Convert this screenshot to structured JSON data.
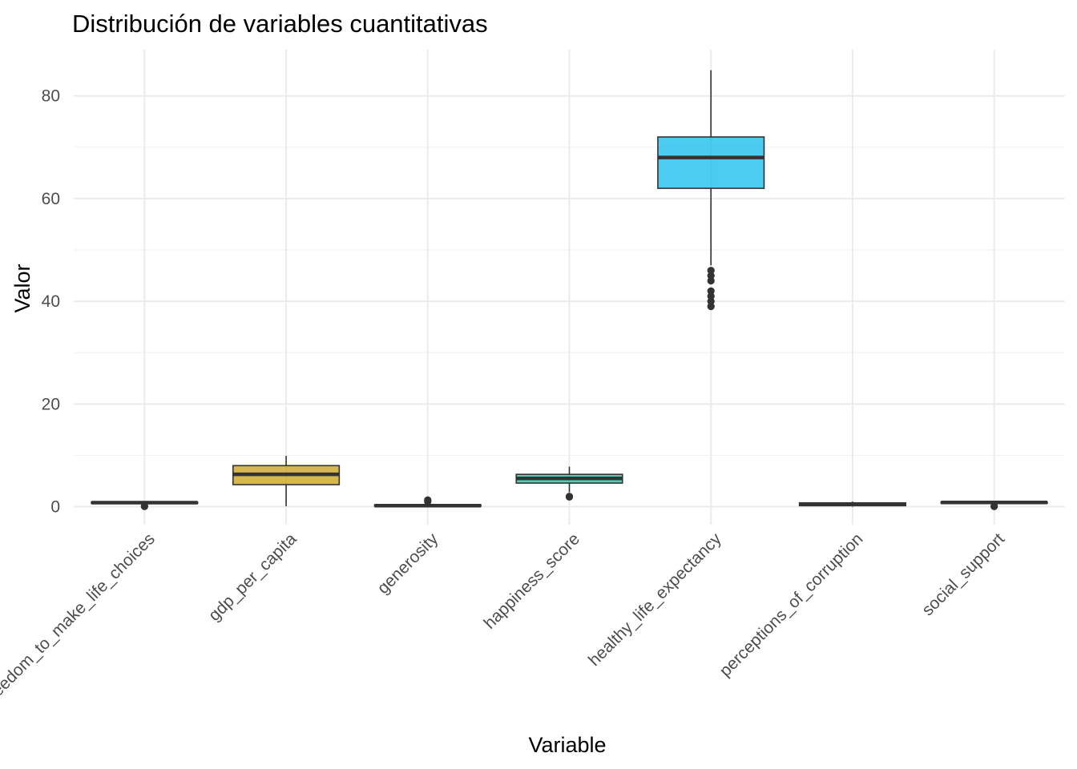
{
  "chart_data": {
    "type": "boxplot",
    "title": "Distribución de variables cuantitativas",
    "xlabel": "Variable",
    "ylabel": "Valor",
    "ylim": [
      -3.5,
      89
    ],
    "y_ticks": [
      0,
      20,
      40,
      60,
      80
    ],
    "grid": true,
    "legend": "none",
    "categories": [
      "freedom_to_make_life_choices",
      "gdp_per_capita",
      "generosity",
      "happiness_score",
      "healthy_life_expectancy",
      "perceptions_of_corruption",
      "social_support"
    ],
    "series": [
      {
        "category": "freedom_to_make_life_choices",
        "min": 0.3,
        "q1": 0.65,
        "median": 0.78,
        "q3": 0.88,
        "max": 1.0,
        "outliers": [
          0.05,
          0.1
        ],
        "color": "#F8766D"
      },
      {
        "category": "gdp_per_capita",
        "min": 0.1,
        "q1": 4.3,
        "median": 6.3,
        "q3": 8.0,
        "max": 9.9,
        "outliers": [],
        "color": "#C49A00"
      },
      {
        "category": "generosity",
        "min": 0.0,
        "q1": 0.1,
        "median": 0.2,
        "q3": 0.35,
        "max": 0.7,
        "outliers": [
          1.0,
          1.3
        ],
        "color": "#53B400"
      },
      {
        "category": "happiness_score",
        "min": 2.8,
        "q1": 4.6,
        "median": 5.5,
        "q3": 6.3,
        "max": 7.8,
        "outliers": [
          1.9,
          2.0
        ],
        "color": "#00C094"
      },
      {
        "category": "healthy_life_expectancy",
        "min": 47,
        "q1": 62,
        "median": 68,
        "q3": 72,
        "max": 85,
        "outliers": [
          39,
          40,
          41,
          42,
          44,
          45,
          46
        ],
        "color": "#00B6EB"
      },
      {
        "category": "perceptions_of_corruption",
        "min": 0.0,
        "q1": 0.2,
        "median": 0.45,
        "q3": 0.75,
        "max": 1.0,
        "outliers": [],
        "color": "#A58AFF"
      },
      {
        "category": "social_support",
        "min": 0.3,
        "q1": 0.7,
        "median": 0.82,
        "q3": 0.9,
        "max": 1.0,
        "outliers": [
          0.05,
          0.1
        ],
        "color": "#FB61D7"
      }
    ]
  }
}
